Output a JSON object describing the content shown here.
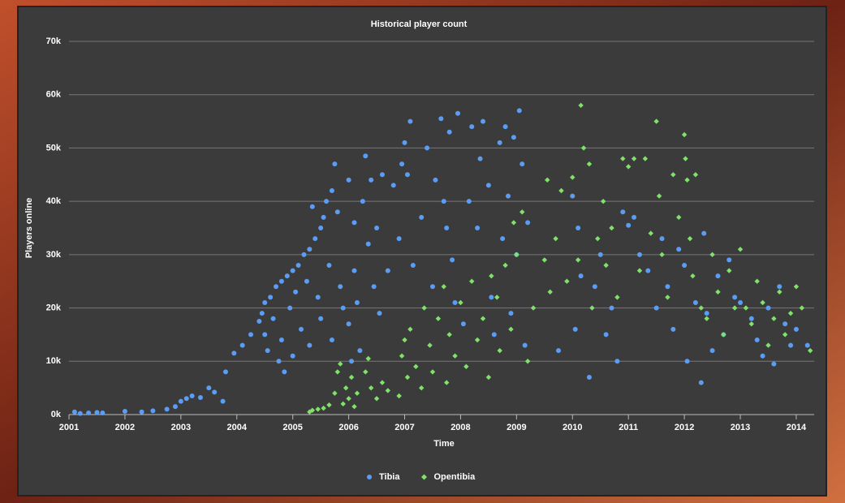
{
  "chart_data": {
    "type": "scatter",
    "title": "Historical player count",
    "x_label": "Time",
    "y_label": "Players online",
    "xlim": [
      2001,
      2014.32
    ],
    "xticks": [
      2001,
      2002,
      2003,
      2004,
      2005,
      2006,
      2007,
      2008,
      2009,
      2010,
      2011,
      2012,
      2013,
      2014
    ],
    "ylim": [
      0,
      70000
    ],
    "yticks": [
      {
        "value": 0,
        "label": "0k"
      },
      {
        "value": 10000,
        "label": "10k"
      },
      {
        "value": 20000,
        "label": "20k"
      },
      {
        "value": 30000,
        "label": "30k"
      },
      {
        "value": 40000,
        "label": "40k"
      },
      {
        "value": 50000,
        "label": "50k"
      },
      {
        "value": 60000,
        "label": "60k"
      },
      {
        "value": 70000,
        "label": "70k"
      }
    ],
    "grid": true,
    "legend": "bottom",
    "series": [
      {
        "name": "Tibia",
        "color": "#5b9cf5",
        "marker": "circle",
        "x": [
          2001.1,
          2001.2,
          2001.35,
          2001.5,
          2001.6,
          2002.0,
          2002.3,
          2002.5,
          2002.75,
          2002.9,
          2003.0,
          2003.1,
          2003.2,
          2003.35,
          2003.5,
          2003.6,
          2003.75,
          2003.8,
          2003.95,
          2004.1,
          2004.25,
          2004.4,
          2004.45,
          2004.5,
          2004.5,
          2004.55,
          2004.6,
          2004.65,
          2004.7,
          2004.75,
          2004.8,
          2004.8,
          2004.85,
          2004.9,
          2004.95,
          2005.0,
          2005.0,
          2005.05,
          2005.1,
          2005.15,
          2005.2,
          2005.25,
          2005.3,
          2005.3,
          2005.35,
          2005.4,
          2005.45,
          2005.5,
          2005.5,
          2005.55,
          2005.6,
          2005.65,
          2005.7,
          2005.7,
          2005.75,
          2005.8,
          2005.85,
          2005.9,
          2006.0,
          2006.0,
          2006.05,
          2006.1,
          2006.1,
          2006.15,
          2006.2,
          2006.25,
          2006.3,
          2006.35,
          2006.4,
          2006.45,
          2006.5,
          2006.55,
          2006.6,
          2006.7,
          2006.8,
          2006.9,
          2006.95,
          2007.0,
          2007.05,
          2007.1,
          2007.15,
          2007.3,
          2007.4,
          2007.5,
          2007.55,
          2007.65,
          2007.7,
          2007.75,
          2007.8,
          2007.85,
          2007.9,
          2007.95,
          2008.05,
          2008.15,
          2008.2,
          2008.3,
          2008.35,
          2008.4,
          2008.5,
          2008.55,
          2008.6,
          2008.7,
          2008.75,
          2008.8,
          2008.85,
          2008.9,
          2008.95,
          2009.0,
          2009.05,
          2009.1,
          2009.15,
          2009.2,
          2009.75,
          2010.0,
          2010.05,
          2010.1,
          2010.15,
          2010.3,
          2010.4,
          2010.5,
          2010.6,
          2010.7,
          2010.8,
          2010.9,
          2011.0,
          2011.1,
          2011.2,
          2011.35,
          2011.5,
          2011.6,
          2011.7,
          2011.8,
          2011.9,
          2012.0,
          2012.05,
          2012.2,
          2012.3,
          2012.35,
          2012.4,
          2012.5,
          2012.6,
          2012.7,
          2012.8,
          2012.9,
          2013.0,
          2013.2,
          2013.3,
          2013.4,
          2013.5,
          2013.6,
          2013.7,
          2013.8,
          2013.9,
          2014.0,
          2014.2
        ],
        "values": [
          500,
          200,
          300,
          400,
          300,
          600,
          500,
          700,
          1000,
          1500,
          2500,
          3000,
          3500,
          3200,
          5000,
          4200,
          2500,
          8000,
          11500,
          13000,
          15000,
          17500,
          19000,
          21000,
          15000,
          12000,
          22000,
          18000,
          24000,
          10000,
          25000,
          14000,
          8000,
          26000,
          20000,
          27000,
          11000,
          23000,
          28000,
          16000,
          30000,
          25000,
          13000,
          31000,
          39000,
          33000,
          22000,
          35000,
          18000,
          37000,
          40000,
          28000,
          42000,
          14000,
          47000,
          38000,
          24000,
          20000,
          44000,
          17000,
          10000,
          36000,
          27000,
          21000,
          12000,
          40000,
          48500,
          32000,
          44000,
          24000,
          35000,
          19000,
          45000,
          27000,
          43000,
          33000,
          47000,
          51000,
          45000,
          55000,
          28000,
          37000,
          50000,
          24000,
          44000,
          55500,
          40000,
          35000,
          53000,
          29000,
          21000,
          56500,
          17000,
          40000,
          54000,
          35000,
          48000,
          55000,
          43000,
          22000,
          15000,
          51000,
          33000,
          54000,
          41000,
          19000,
          52000,
          30000,
          57000,
          47000,
          13000,
          36000,
          12000,
          41000,
          16000,
          35000,
          26000,
          7000,
          24000,
          30000,
          15000,
          20000,
          10000,
          38000,
          35500,
          37000,
          30000,
          27000,
          20000,
          33000,
          24000,
          16000,
          31000,
          28000,
          10000,
          21000,
          6000,
          34000,
          19000,
          12000,
          26000,
          15000,
          29000,
          22000,
          21000,
          18000,
          14000,
          11000,
          20000,
          9500,
          24000,
          17000,
          13000,
          16000,
          13000
        ]
      },
      {
        "name": "Opentibia",
        "color": "#7fe36a",
        "marker": "diamond",
        "x": [
          2005.3,
          2005.35,
          2005.45,
          2005.55,
          2005.65,
          2005.75,
          2005.8,
          2005.85,
          2005.9,
          2005.95,
          2006.0,
          2006.05,
          2006.1,
          2006.15,
          2006.3,
          2006.35,
          2006.4,
          2006.5,
          2006.6,
          2006.7,
          2006.9,
          2006.95,
          2007.0,
          2007.05,
          2007.1,
          2007.2,
          2007.3,
          2007.35,
          2007.45,
          2007.5,
          2007.6,
          2007.7,
          2007.75,
          2007.8,
          2007.9,
          2008.0,
          2008.1,
          2008.2,
          2008.3,
          2008.4,
          2008.5,
          2008.55,
          2008.65,
          2008.7,
          2008.8,
          2008.9,
          2008.95,
          2009.0,
          2009.1,
          2009.2,
          2009.3,
          2009.5,
          2009.55,
          2009.6,
          2009.7,
          2009.8,
          2009.9,
          2010.0,
          2010.1,
          2010.15,
          2010.2,
          2010.3,
          2010.35,
          2010.45,
          2010.55,
          2010.6,
          2010.7,
          2010.8,
          2010.9,
          2011.0,
          2011.1,
          2011.2,
          2011.3,
          2011.4,
          2011.5,
          2011.55,
          2011.6,
          2011.7,
          2011.8,
          2011.9,
          2012.0,
          2012.02,
          2012.05,
          2012.1,
          2012.15,
          2012.2,
          2012.3,
          2012.4,
          2012.5,
          2012.6,
          2012.7,
          2012.8,
          2012.9,
          2013.0,
          2013.1,
          2013.2,
          2013.3,
          2013.4,
          2013.5,
          2013.6,
          2013.7,
          2013.8,
          2013.9,
          2014.0,
          2014.1,
          2014.25
        ],
        "values": [
          500,
          800,
          1000,
          1200,
          1800,
          4000,
          8000,
          9500,
          2000,
          5000,
          3000,
          7000,
          1500,
          4000,
          8000,
          10500,
          5000,
          3000,
          6000,
          4500,
          3500,
          11000,
          14000,
          7000,
          16000,
          9000,
          5000,
          20000,
          13000,
          8000,
          18000,
          24000,
          6000,
          15000,
          11000,
          21000,
          9000,
          25000,
          14000,
          18000,
          7000,
          26000,
          22000,
          12000,
          28000,
          16000,
          36000,
          30000,
          38000,
          10000,
          20000,
          29000,
          44000,
          23000,
          33000,
          42000,
          25000,
          44500,
          29000,
          58000,
          50000,
          47000,
          20000,
          33000,
          40000,
          28000,
          35000,
          22000,
          48000,
          46500,
          48000,
          27000,
          48000,
          34000,
          55000,
          41000,
          30000,
          22000,
          45000,
          37000,
          52500,
          48000,
          44000,
          33000,
          26000,
          45000,
          20000,
          18000,
          30000,
          23000,
          15000,
          27000,
          20000,
          31000,
          20000,
          17000,
          25000,
          21000,
          13000,
          18000,
          23000,
          15000,
          19000,
          24000,
          20000,
          12000
        ]
      }
    ]
  }
}
